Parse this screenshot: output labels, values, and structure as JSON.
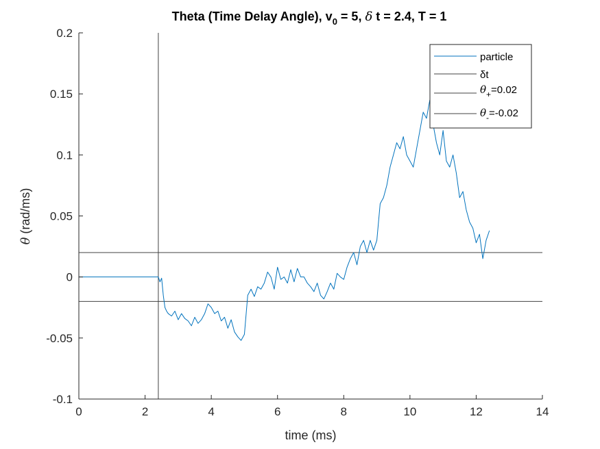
{
  "chart_data": {
    "type": "line",
    "title": {
      "part1": "Theta (Time Delay Angle), v",
      "sub1": "0",
      "part2": " = 5, ",
      "delta": "δ",
      "part3": " t = 2.4, T = 1"
    },
    "xlabel": "time (ms)",
    "ylabel": {
      "symbol": "θ",
      "text": " (rad/ms)"
    },
    "xlim": [
      0,
      14
    ],
    "ylim": [
      -0.1,
      0.2
    ],
    "xticks": [
      0,
      2,
      4,
      6,
      8,
      10,
      12,
      14
    ],
    "xtick_labels": [
      "0",
      "2",
      "4",
      "6",
      "8",
      "10",
      "12",
      "14"
    ],
    "yticks": [
      -0.1,
      -0.05,
      0,
      0.05,
      0.1,
      0.15,
      0.2
    ],
    "ytick_labels": [
      "-0.1",
      "-0.05",
      "0",
      "0.05",
      "0.1",
      "0.15",
      "0.2"
    ],
    "grid": false,
    "legend_position": "top-right",
    "legend": [
      {
        "label": "particle"
      },
      {
        "label": "δt"
      },
      {
        "symbol": "θ",
        "sub": "+",
        "value": "=0.02"
      },
      {
        "symbol": "θ",
        "sub": "-",
        "value": "=-0.02"
      }
    ],
    "colors": {
      "particle": "#0072BD",
      "reference": "#404040"
    },
    "delta_t": 2.4,
    "theta_plus": 0.02,
    "theta_minus": -0.02,
    "series": [
      {
        "name": "particle",
        "x": [
          0,
          0.5,
          1.0,
          1.5,
          2.0,
          2.4,
          2.45,
          2.5,
          2.55,
          2.6,
          2.65,
          2.7,
          2.8,
          2.9,
          3.0,
          3.1,
          3.2,
          3.3,
          3.4,
          3.5,
          3.6,
          3.7,
          3.8,
          3.9,
          4.0,
          4.1,
          4.2,
          4.3,
          4.4,
          4.5,
          4.6,
          4.7,
          4.8,
          4.9,
          5.0,
          5.1,
          5.2,
          5.3,
          5.4,
          5.5,
          5.6,
          5.7,
          5.8,
          5.9,
          6.0,
          6.1,
          6.2,
          6.3,
          6.4,
          6.5,
          6.6,
          6.7,
          6.8,
          6.9,
          7.0,
          7.1,
          7.2,
          7.3,
          7.4,
          7.5,
          7.6,
          7.7,
          7.8,
          7.9,
          8.0,
          8.1,
          8.2,
          8.3,
          8.4,
          8.5,
          8.6,
          8.7,
          8.8,
          8.9,
          9.0,
          9.1,
          9.2,
          9.3,
          9.4,
          9.5,
          9.6,
          9.7,
          9.8,
          9.9,
          10.0,
          10.1,
          10.2,
          10.3,
          10.4,
          10.5,
          10.6,
          10.7,
          10.8,
          10.9,
          11.0,
          11.1,
          11.2,
          11.3,
          11.4,
          11.5,
          11.6,
          11.7,
          11.8,
          11.9,
          12.0,
          12.1,
          12.2,
          12.3,
          12.4
        ],
        "values": [
          0,
          0,
          0,
          0,
          0,
          0,
          -0.004,
          -0.001,
          -0.015,
          -0.025,
          -0.028,
          -0.03,
          -0.032,
          -0.028,
          -0.035,
          -0.03,
          -0.034,
          -0.036,
          -0.04,
          -0.033,
          -0.038,
          -0.035,
          -0.03,
          -0.022,
          -0.025,
          -0.03,
          -0.028,
          -0.036,
          -0.033,
          -0.042,
          -0.035,
          -0.045,
          -0.049,
          -0.052,
          -0.047,
          -0.015,
          -0.01,
          -0.016,
          -0.008,
          -0.01,
          -0.005,
          0.004,
          0.0,
          -0.01,
          0.008,
          -0.002,
          0.0,
          -0.005,
          0.006,
          -0.004,
          0.007,
          0.0,
          0.0,
          -0.005,
          -0.008,
          -0.012,
          -0.005,
          -0.015,
          -0.018,
          -0.012,
          -0.005,
          -0.01,
          0.003,
          0.0,
          -0.002,
          0.008,
          0.015,
          0.02,
          0.01,
          0.025,
          0.03,
          0.02,
          0.03,
          0.022,
          0.03,
          0.06,
          0.065,
          0.075,
          0.09,
          0.1,
          0.11,
          0.105,
          0.115,
          0.1,
          0.095,
          0.09,
          0.105,
          0.12,
          0.135,
          0.13,
          0.145,
          0.125,
          0.11,
          0.1,
          0.12,
          0.095,
          0.09,
          0.1,
          0.085,
          0.065,
          0.07,
          0.055,
          0.045,
          0.04,
          0.028,
          0.035,
          0.015,
          0.03,
          0.038
        ]
      }
    ]
  }
}
